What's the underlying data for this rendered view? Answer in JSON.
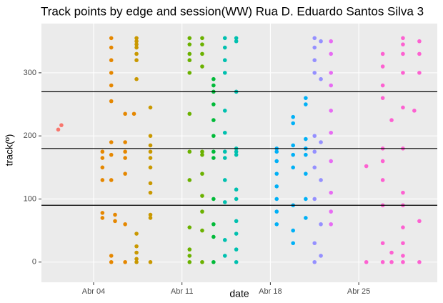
{
  "chart_data": {
    "type": "scatter",
    "title": "Track points by edge and session(WW) Rua D. Eduardo Santos Silva 3",
    "x_label": "date",
    "y_label": "track(º)",
    "xlim": [
      -0.13,
      31.22
    ],
    "ylim": [
      -32,
      378
    ],
    "xticks": [
      {
        "value": 4,
        "label": "Abr 04"
      },
      {
        "value": 11,
        "label": "Abr 11"
      },
      {
        "value": 18,
        "label": "Abr 18"
      },
      {
        "value": 25,
        "label": "Abr 25"
      }
    ],
    "yticks": [
      0,
      100,
      200,
      300
    ],
    "hlines": [
      90,
      180,
      270
    ],
    "grid": true,
    "series": [
      {
        "color": "#F8766D",
        "x": [
          1.2,
          1.45
        ],
        "values": [
          210,
          217
        ]
      },
      {
        "color": "#E58700",
        "x": [
          4.7,
          4.7,
          4.7,
          4.7,
          4.7,
          4.7,
          5.4,
          5.4,
          5.4,
          5.4,
          5.4,
          5.4,
          5.4,
          5.4,
          5.4,
          5.4,
          5.4,
          5.7,
          5.7,
          6.5,
          6.5,
          6.5,
          6.5,
          6.5,
          6.5,
          6.5,
          7.2
        ],
        "values": [
          175,
          165,
          150,
          130,
          78,
          70,
          355,
          340,
          320,
          300,
          280,
          255,
          190,
          170,
          130,
          10,
          0,
          65,
          75,
          235,
          190,
          175,
          165,
          140,
          60,
          0,
          235
        ]
      },
      {
        "color": "#C99800",
        "x": [
          7.4,
          7.4,
          7.4,
          7.4,
          7.4,
          7.4,
          7.4,
          7.4,
          7.4,
          7.4,
          7.4,
          7.4,
          8.5,
          8.5,
          8.5,
          8.5,
          8.5,
          8.5,
          8.5,
          8.5,
          8.5,
          8.5,
          8.5
        ],
        "values": [
          355,
          350,
          345,
          340,
          330,
          320,
          290,
          45,
          25,
          15,
          5,
          0,
          245,
          200,
          185,
          175,
          165,
          150,
          125,
          110,
          75,
          70,
          0
        ]
      },
      {
        "color": "#6BB100",
        "x": [
          11.6,
          11.6,
          11.6,
          11.6,
          11.6,
          11.6,
          11.6,
          11.6,
          11.6,
          11.6,
          11.6,
          11.6,
          12.6,
          12.6,
          12.6,
          12.6,
          12.6,
          12.6,
          12.6,
          12.6,
          12.6,
          12.6,
          12.6
        ],
        "values": [
          355,
          345,
          330,
          320,
          300,
          235,
          175,
          130,
          55,
          20,
          10,
          0,
          355,
          345,
          330,
          310,
          175,
          170,
          140,
          105,
          80,
          50,
          0
        ]
      },
      {
        "color": "#00BA38",
        "x": [
          13.5,
          13.5,
          13.5,
          13.5,
          13.5,
          13.5,
          13.5,
          13.5,
          13.5,
          13.5,
          13.5,
          13.5
        ],
        "values": [
          290,
          280,
          270,
          250,
          225,
          200,
          175,
          165,
          100,
          60,
          40,
          0
        ]
      },
      {
        "color": "#00C0AF",
        "x": [
          14.4,
          14.4,
          14.4,
          14.4,
          14.4,
          14.4,
          14.4,
          14.4,
          14.4,
          14.4,
          14.4,
          14.4,
          15.3,
          15.3,
          15.3,
          15.3,
          15.3,
          15.3,
          15.3,
          15.3,
          15.3,
          15.3,
          15.3,
          15.3
        ],
        "values": [
          355,
          340,
          320,
          300,
          240,
          205,
          175,
          165,
          130,
          95,
          35,
          10,
          355,
          350,
          270,
          180,
          175,
          170,
          115,
          100,
          65,
          45,
          20,
          0
        ]
      },
      {
        "color": "#00B0F6",
        "x": [
          18.5,
          18.5,
          18.5,
          18.5,
          18.5,
          18.5,
          18.5,
          18.5,
          19.8,
          19.8,
          19.8,
          19.8,
          19.8,
          19.8,
          19.8,
          19.8,
          20.8,
          20.8,
          20.8,
          20.8,
          20.8,
          20.8,
          20.8,
          20.8
        ],
        "values": [
          180,
          175,
          160,
          140,
          120,
          100,
          80,
          60,
          230,
          220,
          185,
          170,
          150,
          90,
          50,
          30,
          260,
          250,
          195,
          180,
          170,
          140,
          100,
          70
        ]
      },
      {
        "color": "#9590FF",
        "x": [
          21.5,
          21.5,
          21.5,
          21.5,
          21.5,
          21.5,
          21.5,
          21.5,
          21.5,
          21.5,
          22.0,
          22.0,
          22.0,
          22.0,
          22.0,
          22.0
        ],
        "values": [
          355,
          340,
          320,
          300,
          200,
          175,
          150,
          100,
          30,
          0,
          350,
          290,
          190,
          130,
          60,
          10
        ]
      },
      {
        "color": "#E76BF3",
        "x": [
          22.8,
          22.8,
          22.8,
          22.8,
          22.8,
          22.8,
          22.8,
          22.8,
          22.8,
          22.8
        ],
        "values": [
          350,
          330,
          300,
          280,
          240,
          205,
          160,
          110,
          80,
          60
        ]
      },
      {
        "color": "#FD61D1",
        "x": [
          25.6,
          25.6,
          26.9,
          26.9,
          26.9,
          26.9,
          26.9,
          26.9,
          26.9,
          26.9,
          26.9,
          26.9,
          27.6,
          27.6,
          27.6,
          28.5,
          28.5,
          28.5,
          28.5,
          28.5,
          28.5,
          28.5,
          28.5,
          28.5,
          28.5,
          28.5,
          28.5,
          29.4,
          29.8,
          29.8,
          29.8,
          29.8,
          29.8
        ],
        "values": [
          152,
          0,
          330,
          310,
          280,
          260,
          180,
          160,
          130,
          90,
          30,
          0,
          225,
          15,
          0,
          355,
          345,
          330,
          300,
          245,
          180,
          110,
          90,
          55,
          30,
          10,
          0,
          240,
          350,
          330,
          300,
          65,
          0
        ]
      }
    ]
  }
}
